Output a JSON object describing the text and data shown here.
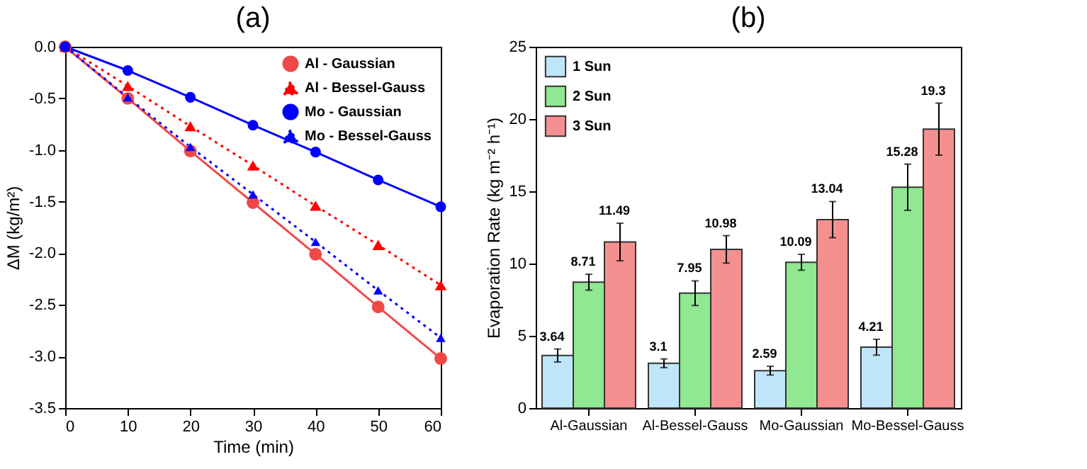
{
  "chart_data": [
    {
      "type": "line",
      "title": "(a)",
      "xlabel": "Time (min)",
      "ylabel": "ΔM (kg/m²)",
      "x": [
        0,
        10,
        20,
        30,
        40,
        50,
        60
      ],
      "xlim": [
        0,
        60
      ],
      "xticks": [
        0,
        10,
        20,
        30,
        40,
        50,
        60
      ],
      "ylim": [
        -3.5,
        0
      ],
      "yticks": [
        {
          "value": -3.5,
          "label": "-3.5"
        },
        {
          "value": -3,
          "label": "-3.0"
        },
        {
          "value": -2.5,
          "label": "-2.5"
        },
        {
          "value": -2,
          "label": "-2.0"
        },
        {
          "value": -1.5,
          "label": "-1.5"
        },
        {
          "value": -1,
          "label": "-1.0"
        },
        {
          "value": -0.5,
          "label": "-0.5"
        },
        {
          "value": 0,
          "label": "0.0"
        }
      ],
      "legend": "top right",
      "series": [
        {
          "name": "Al - Gaussian",
          "color": "#f04848",
          "marker": "circle",
          "line_style": "solid",
          "values": [
            0,
            -0.5,
            -1.01,
            -1.51,
            -2.01,
            -2.52,
            -3.02
          ]
        },
        {
          "name": "Al - Bessel-Gauss",
          "color": "#ff0000",
          "marker": "triangle",
          "line_style": "dotted",
          "values": [
            0,
            -0.38,
            -0.77,
            -1.15,
            -1.54,
            -1.92,
            -2.31
          ]
        },
        {
          "name": "Mo - Gaussian",
          "color": "#0000ff",
          "marker": "circle",
          "line_style": "solid",
          "values": [
            0,
            -0.23,
            -0.49,
            -0.76,
            -1.02,
            -1.29,
            -1.55
          ]
        },
        {
          "name": "Mo - Bessel-Gauss",
          "color": "#0000ff",
          "marker": "triangle",
          "line_style": "dotted",
          "values": [
            0,
            -0.49,
            -0.97,
            -1.43,
            -1.89,
            -2.36,
            -2.82
          ]
        }
      ]
    },
    {
      "type": "bar",
      "title": "(b)",
      "ylabel": "Evaporation Rate (kg m⁻² h⁻¹)",
      "categories": [
        "Al-Gaussian",
        "Al-Bessel-Gauss",
        "Mo-Gaussian",
        "Mo-Bessel-Gauss"
      ],
      "ylim": [
        0,
        25
      ],
      "yticks": [
        0,
        5,
        10,
        15,
        20,
        25
      ],
      "legend": "top left",
      "data_labels": true,
      "series": [
        {
          "name": "1 Sun",
          "color": "#bfe6f8",
          "values": [
            3.64,
            3.1,
            2.59,
            4.21
          ],
          "errors": [
            0.45,
            0.3,
            0.3,
            0.55
          ]
        },
        {
          "name": "2 Sun",
          "color": "#90e890",
          "values": [
            8.71,
            7.95,
            10.09,
            15.28
          ],
          "errors": [
            0.55,
            0.85,
            0.55,
            1.6
          ]
        },
        {
          "name": "3 Sun",
          "color": "#f49090",
          "values": [
            11.49,
            10.98,
            13.04,
            19.3
          ],
          "errors": [
            1.3,
            0.95,
            1.25,
            1.8
          ]
        }
      ]
    }
  ]
}
